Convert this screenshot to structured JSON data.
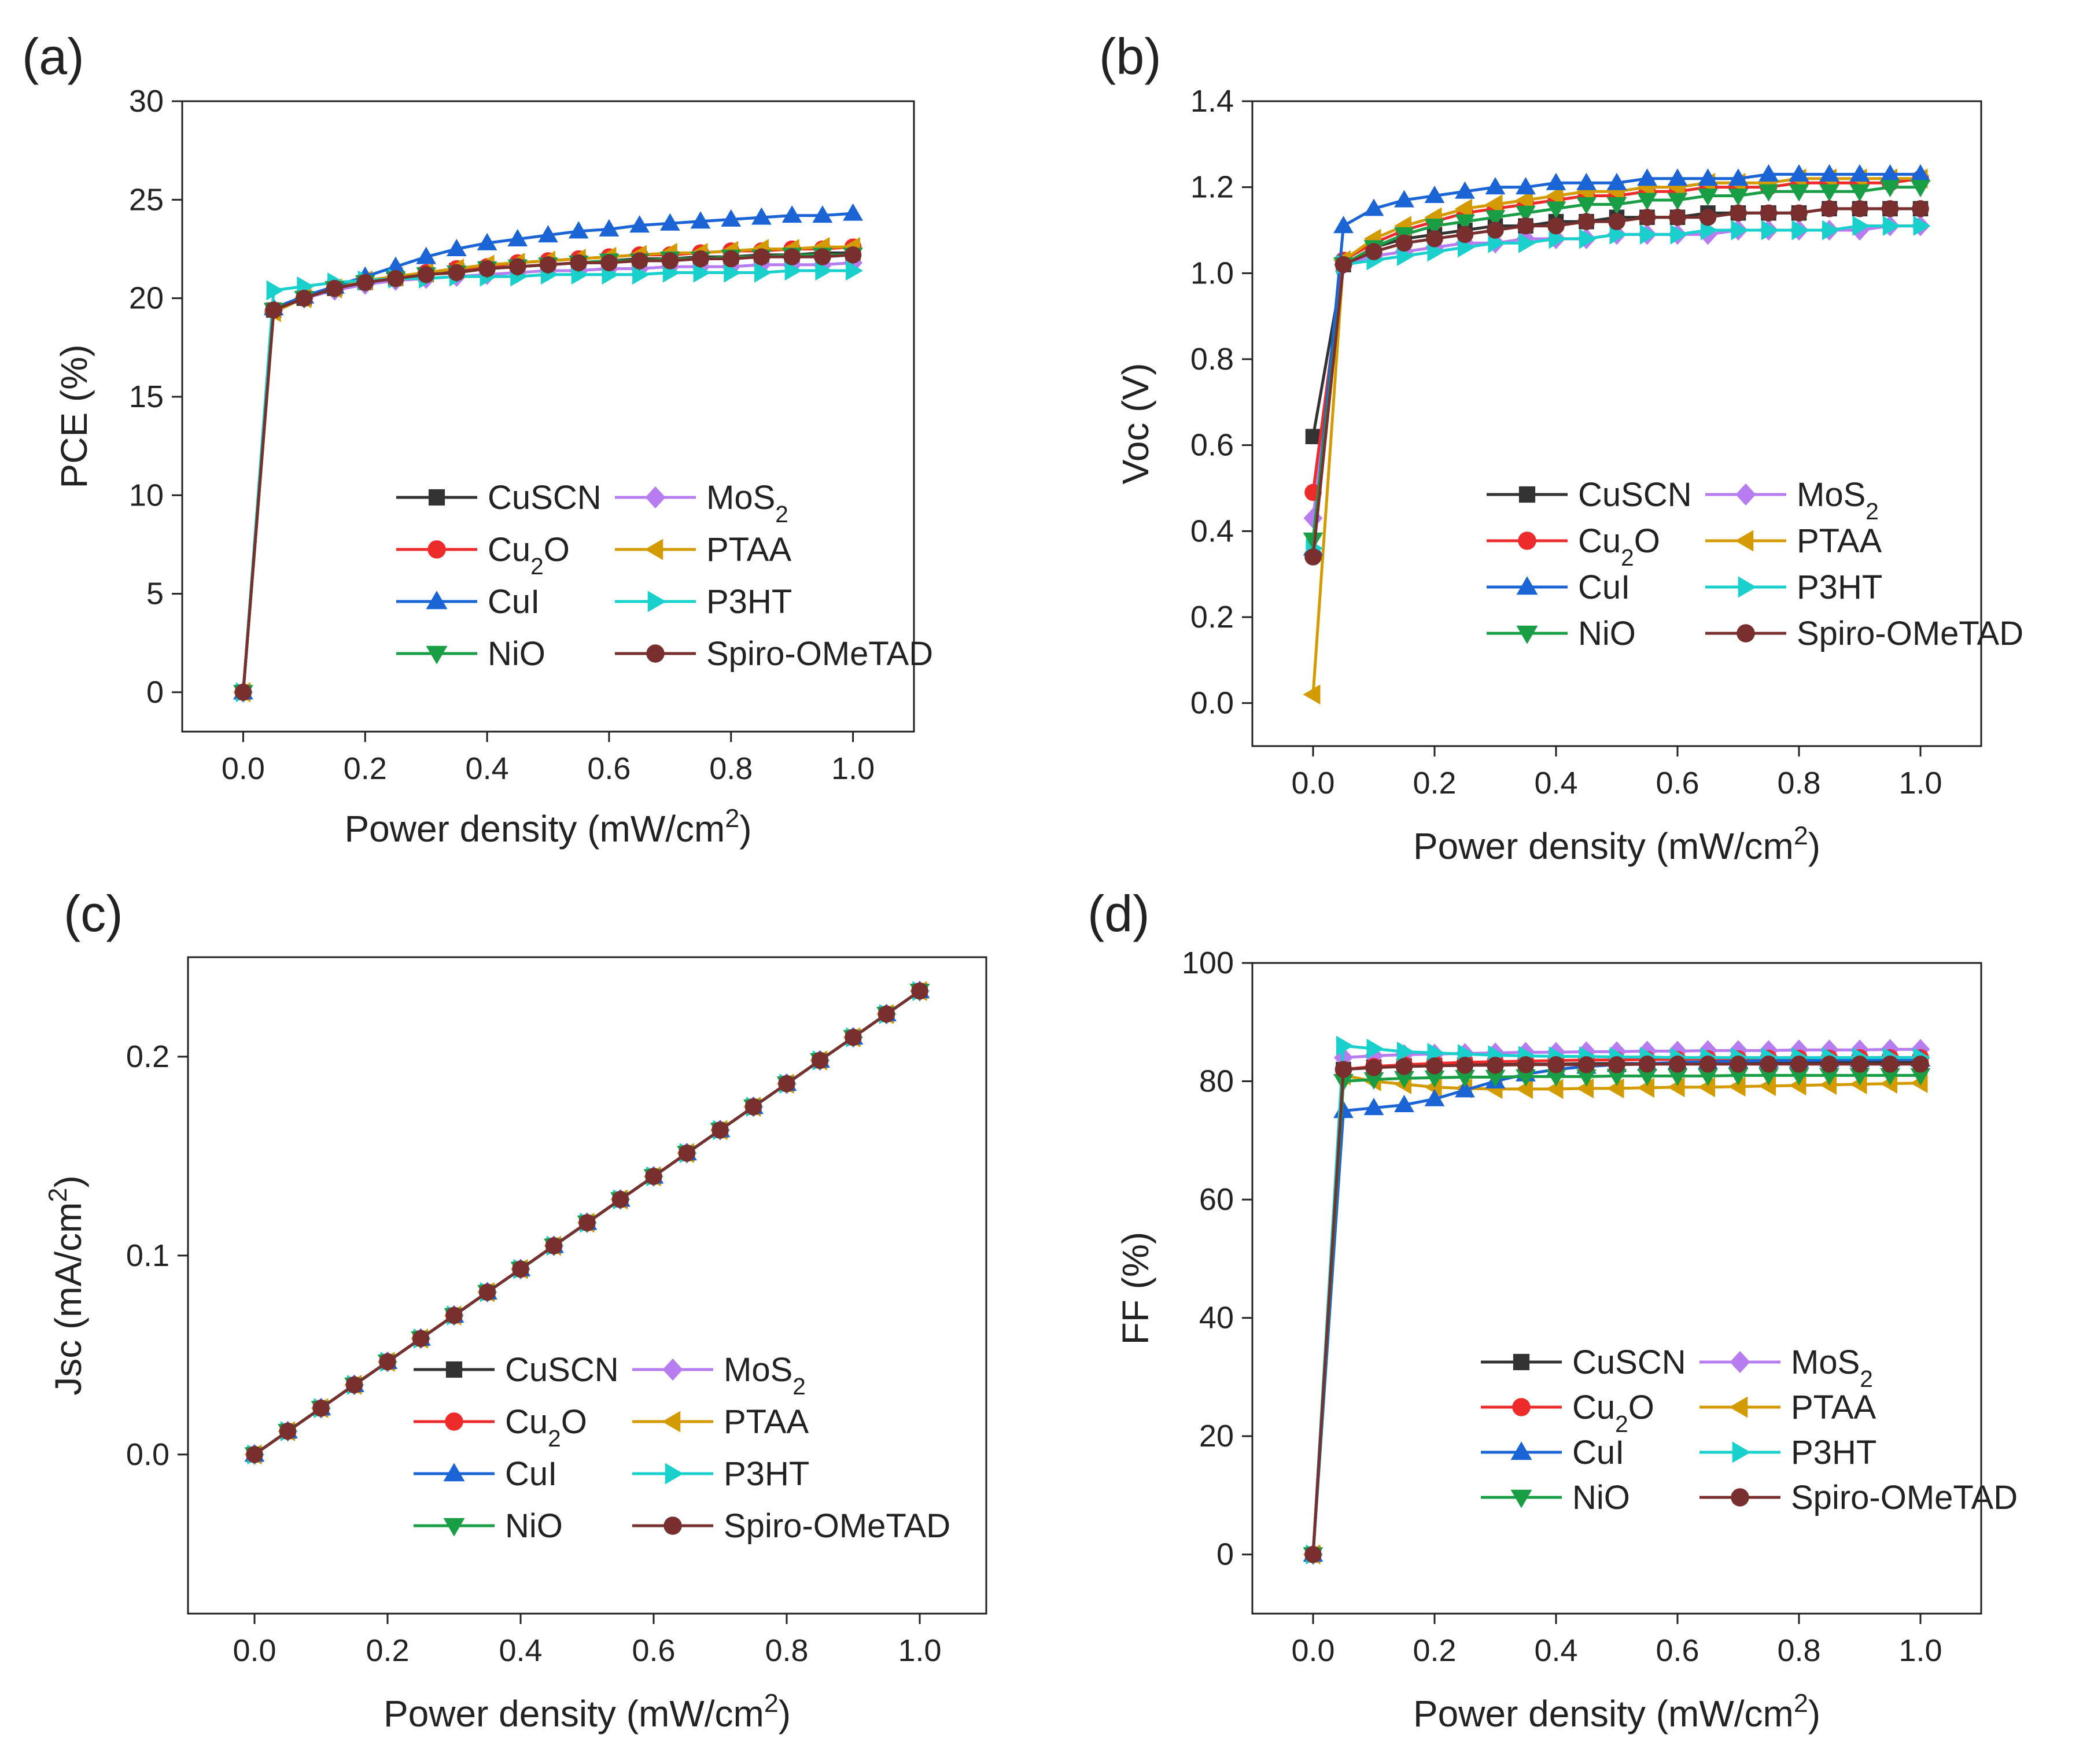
{
  "series_styles": [
    {
      "name": "CuSCN",
      "label": "CuSCN",
      "sub": "",
      "color": "#333333",
      "marker": "square"
    },
    {
      "name": "MoS2",
      "label": "MoS",
      "sub": "2",
      "color": "#b67cf0",
      "marker": "diamond"
    },
    {
      "name": "Cu2O",
      "label": "Cu",
      "sub": "2",
      "tail": "O",
      "color": "#ee2b2b",
      "marker": "circle"
    },
    {
      "name": "PTAA",
      "label": "PTAA",
      "sub": "",
      "color": "#d49b00",
      "marker": "tri-left"
    },
    {
      "name": "CuI",
      "label": "CuI",
      "sub": "",
      "color": "#1a64d6",
      "marker": "tri-up"
    },
    {
      "name": "P3HT",
      "label": "P3HT",
      "sub": "",
      "color": "#19d0cc",
      "marker": "tri-right"
    },
    {
      "name": "NiO",
      "label": "NiO",
      "sub": "",
      "color": "#1a9e45",
      "marker": "tri-down"
    },
    {
      "name": "Spiro-OMeTAD",
      "label": "Spiro-OMeTAD",
      "sub": "",
      "color": "#7a2f2f",
      "marker": "circle"
    }
  ],
  "chart_data": [
    {
      "panel": "(a)",
      "type": "line",
      "xlabel": "Power density (mW/cm",
      "xlabel_sup": "2",
      "xlabel_tail": ")",
      "ylabel": "PCE (%)",
      "xlim": [
        -0.1,
        1.1
      ],
      "ylim": [
        -2,
        30
      ],
      "xticks": [
        "0.0",
        "0.2",
        "0.4",
        "0.6",
        "0.8",
        "1.0"
      ],
      "yticks": [
        "0",
        "5",
        "10",
        "15",
        "20",
        "25",
        "30"
      ],
      "x": [
        0,
        0.05,
        0.1,
        0.15,
        0.2,
        0.25,
        0.3,
        0.35,
        0.4,
        0.45,
        0.5,
        0.55,
        0.6,
        0.65,
        0.7,
        0.75,
        0.8,
        0.85,
        0.9,
        0.95,
        1.0
      ],
      "series": [
        {
          "name": "CuSCN",
          "values": [
            0,
            19.4,
            20.0,
            20.5,
            20.8,
            21.0,
            21.2,
            21.4,
            21.5,
            21.6,
            21.7,
            21.8,
            21.9,
            22.0,
            22.0,
            22.1,
            22.1,
            22.2,
            22.2,
            22.3,
            22.3
          ]
        },
        {
          "name": "MoS2",
          "values": [
            0,
            19.4,
            20.0,
            20.4,
            20.7,
            20.9,
            21.0,
            21.1,
            21.2,
            21.3,
            21.4,
            21.4,
            21.5,
            21.5,
            21.6,
            21.6,
            21.6,
            21.7,
            21.7,
            21.7,
            21.8
          ]
        },
        {
          "name": "Cu2O",
          "values": [
            0,
            19.4,
            20.0,
            20.5,
            20.9,
            21.1,
            21.3,
            21.5,
            21.6,
            21.8,
            21.9,
            22.0,
            22.1,
            22.2,
            22.2,
            22.3,
            22.4,
            22.4,
            22.5,
            22.5,
            22.6
          ]
        },
        {
          "name": "PTAA",
          "values": [
            0,
            19.3,
            20.0,
            20.5,
            20.9,
            21.1,
            21.3,
            21.5,
            21.7,
            21.8,
            21.9,
            22.0,
            22.1,
            22.2,
            22.3,
            22.3,
            22.4,
            22.5,
            22.5,
            22.6,
            22.6
          ]
        },
        {
          "name": "CuI",
          "values": [
            0,
            19.5,
            20.1,
            20.6,
            21.1,
            21.6,
            22.1,
            22.5,
            22.8,
            23.0,
            23.2,
            23.4,
            23.5,
            23.7,
            23.8,
            23.9,
            24.0,
            24.1,
            24.2,
            24.2,
            24.3
          ]
        },
        {
          "name": "P3HT",
          "values": [
            0,
            20.4,
            20.6,
            20.8,
            20.9,
            21.0,
            21.0,
            21.1,
            21.1,
            21.1,
            21.2,
            21.2,
            21.2,
            21.2,
            21.3,
            21.3,
            21.3,
            21.3,
            21.4,
            21.4,
            21.4
          ]
        },
        {
          "name": "NiO",
          "values": [
            0,
            19.4,
            20.0,
            20.5,
            20.8,
            21.0,
            21.2,
            21.3,
            21.5,
            21.6,
            21.7,
            21.8,
            21.9,
            21.9,
            22.0,
            22.0,
            22.1,
            22.1,
            22.2,
            22.2,
            22.2
          ]
        },
        {
          "name": "Spiro-OMeTAD",
          "values": [
            0,
            19.4,
            20.0,
            20.5,
            20.8,
            21.0,
            21.2,
            21.3,
            21.5,
            21.6,
            21.7,
            21.8,
            21.8,
            21.9,
            21.9,
            22.0,
            22.0,
            22.1,
            22.1,
            22.1,
            22.2
          ]
        }
      ]
    },
    {
      "panel": "(b)",
      "type": "line",
      "xlabel": "Power density (mW/cm",
      "xlabel_sup": "2",
      "xlabel_tail": ")",
      "ylabel": "Voc (V)",
      "xlim": [
        -0.1,
        1.1
      ],
      "ylim": [
        -0.1,
        1.4
      ],
      "xticks": [
        "0.0",
        "0.2",
        "0.4",
        "0.6",
        "0.8",
        "1.0"
      ],
      "yticks": [
        "0.0",
        "0.2",
        "0.4",
        "0.6",
        "0.8",
        "1.0",
        "1.2",
        "1.4"
      ],
      "x": [
        0,
        0.05,
        0.1,
        0.15,
        0.2,
        0.25,
        0.3,
        0.35,
        0.4,
        0.45,
        0.5,
        0.55,
        0.6,
        0.65,
        0.7,
        0.75,
        0.8,
        0.85,
        0.9,
        0.95,
        1.0
      ],
      "series": [
        {
          "name": "CuSCN",
          "values": [
            0.62,
            1.02,
            1.06,
            1.08,
            1.09,
            1.1,
            1.11,
            1.11,
            1.12,
            1.12,
            1.13,
            1.13,
            1.13,
            1.14,
            1.14,
            1.14,
            1.14,
            1.15,
            1.15,
            1.15,
            1.15
          ]
        },
        {
          "name": "MoS2",
          "values": [
            0.43,
            1.02,
            1.04,
            1.05,
            1.06,
            1.07,
            1.07,
            1.08,
            1.08,
            1.08,
            1.09,
            1.09,
            1.09,
            1.09,
            1.1,
            1.1,
            1.1,
            1.1,
            1.1,
            1.11,
            1.11
          ]
        },
        {
          "name": "Cu2O",
          "values": [
            0.49,
            1.03,
            1.07,
            1.1,
            1.12,
            1.14,
            1.15,
            1.16,
            1.17,
            1.18,
            1.18,
            1.19,
            1.19,
            1.2,
            1.2,
            1.2,
            1.21,
            1.21,
            1.21,
            1.21,
            1.22
          ]
        },
        {
          "name": "PTAA",
          "values": [
            0.02,
            1.03,
            1.08,
            1.11,
            1.13,
            1.15,
            1.16,
            1.17,
            1.18,
            1.19,
            1.19,
            1.2,
            1.2,
            1.21,
            1.21,
            1.21,
            1.22,
            1.22,
            1.22,
            1.22,
            1.22
          ]
        },
        {
          "name": "CuI",
          "values": [
            0.36,
            1.11,
            1.15,
            1.17,
            1.18,
            1.19,
            1.2,
            1.2,
            1.21,
            1.21,
            1.21,
            1.22,
            1.22,
            1.22,
            1.22,
            1.23,
            1.23,
            1.23,
            1.23,
            1.23,
            1.23
          ]
        },
        {
          "name": "P3HT",
          "values": [
            0.36,
            1.02,
            1.03,
            1.04,
            1.05,
            1.06,
            1.07,
            1.07,
            1.08,
            1.08,
            1.09,
            1.09,
            1.09,
            1.1,
            1.1,
            1.1,
            1.1,
            1.1,
            1.11,
            1.11,
            1.11
          ]
        },
        {
          "name": "NiO",
          "values": [
            0.38,
            1.02,
            1.06,
            1.09,
            1.11,
            1.12,
            1.13,
            1.14,
            1.15,
            1.16,
            1.16,
            1.17,
            1.17,
            1.18,
            1.18,
            1.19,
            1.19,
            1.19,
            1.19,
            1.2,
            1.2
          ]
        },
        {
          "name": "Spiro-OMeTAD",
          "values": [
            0.34,
            1.02,
            1.05,
            1.07,
            1.08,
            1.09,
            1.1,
            1.11,
            1.11,
            1.12,
            1.12,
            1.13,
            1.13,
            1.13,
            1.14,
            1.14,
            1.14,
            1.15,
            1.15,
            1.15,
            1.15
          ]
        }
      ]
    },
    {
      "panel": "(c)",
      "type": "line",
      "xlabel": "Power density (mW/cm",
      "xlabel_sup": "2",
      "xlabel_tail": ")",
      "ylabel": "Jsc (mA/cm",
      "ylabel_sup": "2",
      "ylabel_tail": ")",
      "xlim": [
        -0.1,
        1.1
      ],
      "ylim": [
        -0.08,
        0.25
      ],
      "xticks": [
        "0.0",
        "0.2",
        "0.4",
        "0.6",
        "0.8",
        "1.0"
      ],
      "yticks": [
        "0.0",
        "0.1",
        "0.2"
      ],
      "ytick_values": [
        0.0,
        0.1,
        0.2
      ],
      "x": [
        0,
        0.05,
        0.1,
        0.15,
        0.2,
        0.25,
        0.3,
        0.35,
        0.4,
        0.45,
        0.5,
        0.55,
        0.6,
        0.65,
        0.7,
        0.75,
        0.8,
        0.85,
        0.9,
        0.95,
        1.0
      ],
      "series": [
        {
          "name": "CuSCN",
          "values": [
            0,
            0.0117,
            0.0233,
            0.035,
            0.0466,
            0.0583,
            0.0699,
            0.0816,
            0.0932,
            0.1049,
            0.1165,
            0.1282,
            0.1398,
            0.1515,
            0.1631,
            0.1748,
            0.1864,
            0.1981,
            0.2097,
            0.2214,
            0.233
          ]
        },
        {
          "name": "MoS2",
          "values": [
            0,
            0.0117,
            0.0233,
            0.035,
            0.0466,
            0.0583,
            0.0699,
            0.0816,
            0.0932,
            0.1049,
            0.1165,
            0.1282,
            0.1398,
            0.1515,
            0.1631,
            0.1748,
            0.1864,
            0.1981,
            0.2097,
            0.2214,
            0.233
          ]
        },
        {
          "name": "Cu2O",
          "values": [
            0,
            0.0117,
            0.0233,
            0.035,
            0.0466,
            0.0583,
            0.0699,
            0.0816,
            0.0932,
            0.1049,
            0.1165,
            0.1282,
            0.1398,
            0.1515,
            0.1631,
            0.1748,
            0.1864,
            0.1981,
            0.2097,
            0.2214,
            0.233
          ]
        },
        {
          "name": "PTAA",
          "values": [
            0,
            0.0117,
            0.0233,
            0.035,
            0.0466,
            0.0583,
            0.0699,
            0.0816,
            0.0932,
            0.1049,
            0.1165,
            0.1282,
            0.1398,
            0.1515,
            0.1631,
            0.1748,
            0.1864,
            0.1981,
            0.2097,
            0.2214,
            0.233
          ]
        },
        {
          "name": "CuI",
          "values": [
            0,
            0.0117,
            0.0233,
            0.035,
            0.0466,
            0.0583,
            0.0699,
            0.0816,
            0.0932,
            0.1049,
            0.1165,
            0.1282,
            0.1398,
            0.1515,
            0.1631,
            0.1748,
            0.1864,
            0.1981,
            0.2097,
            0.2214,
            0.233
          ]
        },
        {
          "name": "P3HT",
          "values": [
            0,
            0.0117,
            0.0233,
            0.035,
            0.0466,
            0.0583,
            0.0699,
            0.0816,
            0.0932,
            0.1049,
            0.1165,
            0.1282,
            0.1398,
            0.1515,
            0.1631,
            0.1748,
            0.1864,
            0.1981,
            0.2097,
            0.2214,
            0.233
          ]
        },
        {
          "name": "NiO",
          "values": [
            0,
            0.0117,
            0.0233,
            0.035,
            0.0466,
            0.0583,
            0.0699,
            0.0816,
            0.0932,
            0.1049,
            0.1165,
            0.1282,
            0.1398,
            0.1515,
            0.1631,
            0.1748,
            0.1864,
            0.1981,
            0.2097,
            0.2214,
            0.233
          ]
        },
        {
          "name": "Spiro-OMeTAD",
          "values": [
            0,
            0.0117,
            0.0233,
            0.035,
            0.0466,
            0.0583,
            0.0699,
            0.0816,
            0.0932,
            0.1049,
            0.1165,
            0.1282,
            0.1398,
            0.1515,
            0.1631,
            0.1748,
            0.1864,
            0.1981,
            0.2097,
            0.2214,
            0.233
          ]
        }
      ]
    },
    {
      "panel": "(d)",
      "type": "line",
      "xlabel": "Power density (mW/cm",
      "xlabel_sup": "2",
      "xlabel_tail": ")",
      "ylabel": "FF (%)",
      "xlim": [
        -0.1,
        1.1
      ],
      "ylim": [
        -10,
        100
      ],
      "xticks": [
        "0.0",
        "0.2",
        "0.4",
        "0.6",
        "0.8",
        "1.0"
      ],
      "yticks": [
        "0",
        "20",
        "40",
        "60",
        "80",
        "100"
      ],
      "x": [
        0,
        0.05,
        0.1,
        0.15,
        0.2,
        0.25,
        0.3,
        0.35,
        0.4,
        0.45,
        0.5,
        0.55,
        0.6,
        0.65,
        0.7,
        0.75,
        0.8,
        0.85,
        0.9,
        0.95,
        1.0
      ],
      "series": [
        {
          "name": "CuSCN",
          "values": [
            0,
            82.0,
            82.4,
            82.6,
            82.7,
            82.8,
            82.8,
            82.9,
            82.9,
            83.0,
            83.0,
            83.0,
            83.0,
            83.1,
            83.1,
            83.1,
            83.1,
            83.1,
            83.2,
            83.2,
            83.2
          ]
        },
        {
          "name": "MoS2",
          "values": [
            0,
            84.0,
            84.3,
            84.5,
            84.6,
            84.7,
            84.8,
            84.9,
            84.9,
            85.0,
            85.0,
            85.1,
            85.1,
            85.2,
            85.2,
            85.2,
            85.3,
            85.3,
            85.3,
            85.4,
            85.4
          ]
        },
        {
          "name": "Cu2O",
          "values": [
            0,
            82.0,
            82.5,
            82.8,
            83.0,
            83.2,
            83.3,
            83.4,
            83.5,
            83.6,
            83.6,
            83.7,
            83.7,
            83.8,
            83.8,
            83.9,
            83.9,
            83.9,
            84.0,
            84.0,
            84.0
          ]
        },
        {
          "name": "PTAA",
          "values": [
            0,
            81.0,
            80.0,
            79.5,
            79.0,
            78.8,
            78.7,
            78.7,
            78.7,
            78.8,
            78.8,
            78.9,
            79.0,
            79.0,
            79.1,
            79.2,
            79.3,
            79.4,
            79.5,
            79.6,
            79.7
          ]
        },
        {
          "name": "CuI",
          "values": [
            0,
            75.0,
            75.5,
            76.0,
            77.0,
            78.5,
            80.0,
            81.2,
            82.0,
            82.5,
            82.8,
            83.0,
            83.2,
            83.3,
            83.4,
            83.5,
            83.5,
            83.6,
            83.6,
            83.7,
            83.7
          ]
        },
        {
          "name": "P3HT",
          "values": [
            0,
            86.0,
            85.5,
            85.0,
            84.8,
            84.6,
            84.4,
            84.3,
            84.2,
            84.2,
            84.1,
            84.1,
            84.0,
            84.0,
            84.0,
            84.0,
            84.0,
            84.0,
            84.0,
            84.0,
            84.0
          ]
        },
        {
          "name": "NiO",
          "values": [
            0,
            80.0,
            80.3,
            80.5,
            80.6,
            80.7,
            80.7,
            80.8,
            80.8,
            80.8,
            80.9,
            80.9,
            80.9,
            80.9,
            81.0,
            81.0,
            81.0,
            81.0,
            81.0,
            81.0,
            81.0
          ]
        },
        {
          "name": "Spiro-OMeTAD",
          "values": [
            0,
            82.0,
            82.3,
            82.5,
            82.6,
            82.7,
            82.7,
            82.8,
            82.8,
            82.8,
            82.8,
            82.9,
            82.9,
            82.9,
            82.9,
            82.9,
            82.9,
            82.9,
            82.9,
            82.9,
            82.9
          ]
        }
      ]
    }
  ]
}
